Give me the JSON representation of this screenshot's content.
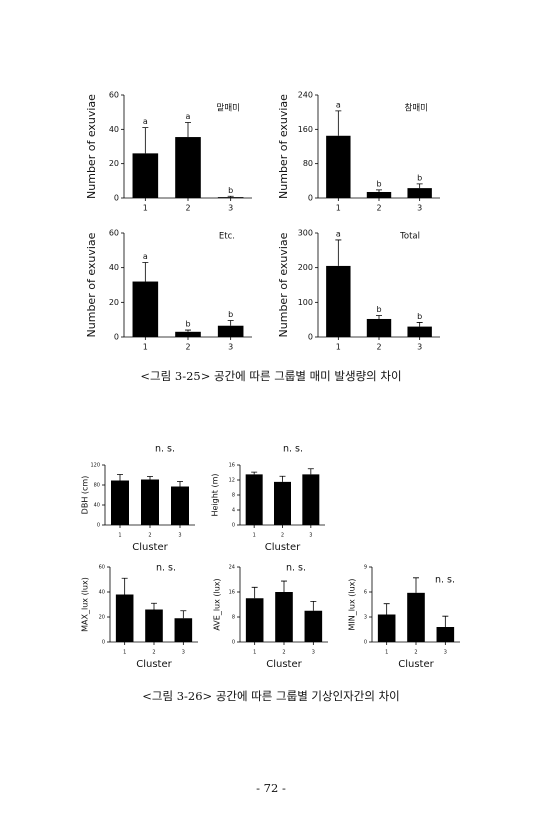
{
  "chart_data": [
    {
      "type": "bar",
      "y_label": "Number of exuviae",
      "label": "말매미",
      "categories": [
        "1",
        "2",
        "3"
      ],
      "values": [
        26,
        35.5,
        0.5
      ],
      "errors": [
        15,
        8.5,
        0.5
      ],
      "letters": [
        "a",
        "a",
        "b"
      ],
      "ylim": [
        0,
        60
      ],
      "yticks": [
        0,
        20,
        40,
        60
      ],
      "color": "#000000"
    },
    {
      "type": "bar",
      "y_label": "Number of exuviae",
      "label": "참매미",
      "categories": [
        "1",
        "2",
        "3"
      ],
      "values": [
        145,
        14,
        23
      ],
      "errors": [
        58,
        5,
        10
      ],
      "letters": [
        "a",
        "b",
        "b"
      ],
      "ylim": [
        0,
        240
      ],
      "yticks": [
        0,
        80,
        160,
        240
      ],
      "color": "#000000"
    },
    {
      "type": "bar",
      "y_label": "Number of exuviae",
      "label": "Etc.",
      "categories": [
        "1",
        "2",
        "3"
      ],
      "values": [
        32,
        3,
        6.5
      ],
      "errors": [
        11,
        1,
        3
      ],
      "letters": [
        "a",
        "b",
        "b"
      ],
      "ylim": [
        0,
        60
      ],
      "yticks": [
        0,
        20,
        40,
        60
      ],
      "color": "#000000"
    },
    {
      "type": "bar",
      "y_label": "Number of exuviae",
      "label": "Total",
      "categories": [
        "1",
        "2",
        "3"
      ],
      "values": [
        205,
        52,
        30
      ],
      "errors": [
        75,
        10,
        12
      ],
      "letters": [
        "a",
        "b",
        "b"
      ],
      "ylim": [
        0,
        300
      ],
      "yticks": [
        0,
        100,
        200,
        300
      ],
      "color": "#000000"
    },
    {
      "type": "bar",
      "y_label": "DBH (cm)",
      "x_label": "Cluster",
      "label": "n. s.",
      "categories": [
        "1",
        "2",
        "3"
      ],
      "values": [
        89,
        91,
        77
      ],
      "errors": [
        12,
        6,
        10
      ],
      "ylim": [
        0,
        120
      ],
      "yticks": [
        0,
        40,
        80,
        120
      ],
      "color": "#000000"
    },
    {
      "type": "bar",
      "y_label": "Height (m)",
      "x_label": "Cluster",
      "label": "n. s.",
      "categories": [
        "1",
        "2",
        "3"
      ],
      "values": [
        13.5,
        11.5,
        13.5
      ],
      "errors": [
        0.6,
        1.5,
        1.5
      ],
      "ylim": [
        0,
        16
      ],
      "yticks": [
        0,
        4,
        8,
        12,
        16
      ],
      "color": "#000000"
    },
    {
      "type": "bar",
      "y_label": "MAX_lux (lux)",
      "x_label": "Cluster",
      "label": "n. s.",
      "categories": [
        "1",
        "2",
        "3"
      ],
      "values": [
        38,
        26,
        19
      ],
      "errors": [
        13,
        5,
        6
      ],
      "ylim": [
        0,
        60
      ],
      "yticks": [
        0,
        20,
        40,
        60
      ],
      "color": "#000000"
    },
    {
      "type": "bar",
      "y_label": "AVE_lux (lux)",
      "x_label": "Cluster",
      "label": "n. s.",
      "categories": [
        "1",
        "2",
        "3"
      ],
      "values": [
        14,
        16,
        10
      ],
      "errors": [
        3.5,
        3.5,
        3
      ],
      "ylim": [
        0,
        24
      ],
      "yticks": [
        0,
        8,
        16,
        24
      ],
      "color": "#000000"
    },
    {
      "type": "bar",
      "y_label": "MIN_lux (lux)",
      "x_label": "Cluster",
      "label": "n. s.",
      "categories": [
        "1",
        "2",
        "3"
      ],
      "values": [
        3.3,
        5.9,
        1.8
      ],
      "errors": [
        1.3,
        1.8,
        1.3
      ],
      "ylim": [
        0,
        9
      ],
      "yticks": [
        0,
        3,
        6,
        9
      ],
      "color": "#000000"
    }
  ],
  "captions": [
    "<그림 3-25> 공간에 따른 그룹별 매미 발생량의 차이",
    "<그림 3-26> 공간에 따른 그룹별 기상인자간의 차이"
  ],
  "page_number": "- 72 -"
}
